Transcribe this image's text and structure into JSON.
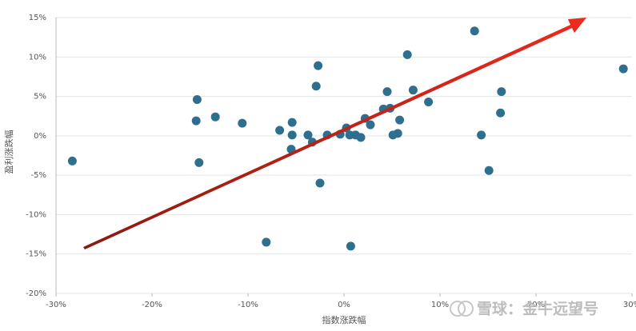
{
  "chart_data": {
    "type": "scatter",
    "x_label": "指数涨跌幅",
    "y_label": "盈利涨跌幅",
    "annotation": "雪球：金牛远望号",
    "color": "#2e6e8e",
    "grid": true,
    "x": [
      -28.3,
      -15.3,
      -15.4,
      -15.1,
      -13.4,
      -10.6,
      -8.1,
      -6.7,
      -5.4,
      -5.4,
      -5.5,
      -3.75,
      -3.3,
      -2.9,
      -2.7,
      -2.5,
      -1.75,
      -0.4,
      0.25,
      0.6,
      0.7,
      1.2,
      1.75,
      2.2,
      2.75,
      4.1,
      4.5,
      4.8,
      5.1,
      5.6,
      5.8,
      6.6,
      7.2,
      8.8,
      13.6,
      14.3,
      15.1,
      16.3,
      16.4,
      29.1
    ],
    "values": [
      -3.2,
      4.6,
      1.9,
      -3.4,
      2.4,
      1.6,
      -13.5,
      0.7,
      1.7,
      0.1,
      -1.7,
      0.1,
      -0.8,
      6.3,
      8.9,
      -6.0,
      0.1,
      0.2,
      1.0,
      0.1,
      -14.0,
      0.1,
      -0.2,
      2.2,
      1.4,
      3.4,
      5.6,
      3.5,
      0.1,
      0.3,
      2.0,
      10.3,
      5.8,
      4.3,
      13.3,
      0.1,
      -4.4,
      2.9,
      5.6,
      8.5
    ],
    "xlim": [
      -30,
      30
    ],
    "xticks": [
      {
        "value": -30,
        "label": "-30%"
      },
      {
        "value": -20,
        "label": "-20%"
      },
      {
        "value": -10,
        "label": "-10%"
      },
      {
        "value": 0,
        "label": "0%"
      },
      {
        "value": 10,
        "label": "10%"
      },
      {
        "value": 20,
        "label": "20%"
      },
      {
        "value": 30,
        "label": "30%"
      }
    ],
    "ylim": [
      -20,
      15
    ],
    "yticks": [
      {
        "value": -20,
        "label": "-20%"
      },
      {
        "value": -15,
        "label": "-15%"
      },
      {
        "value": -10,
        "label": "-10%"
      },
      {
        "value": -5,
        "label": "-5%"
      },
      {
        "value": 0,
        "label": "0%"
      },
      {
        "value": 5,
        "label": "5%"
      },
      {
        "value": 10,
        "label": "10%"
      },
      {
        "value": 15,
        "label": "15%"
      }
    ]
  }
}
